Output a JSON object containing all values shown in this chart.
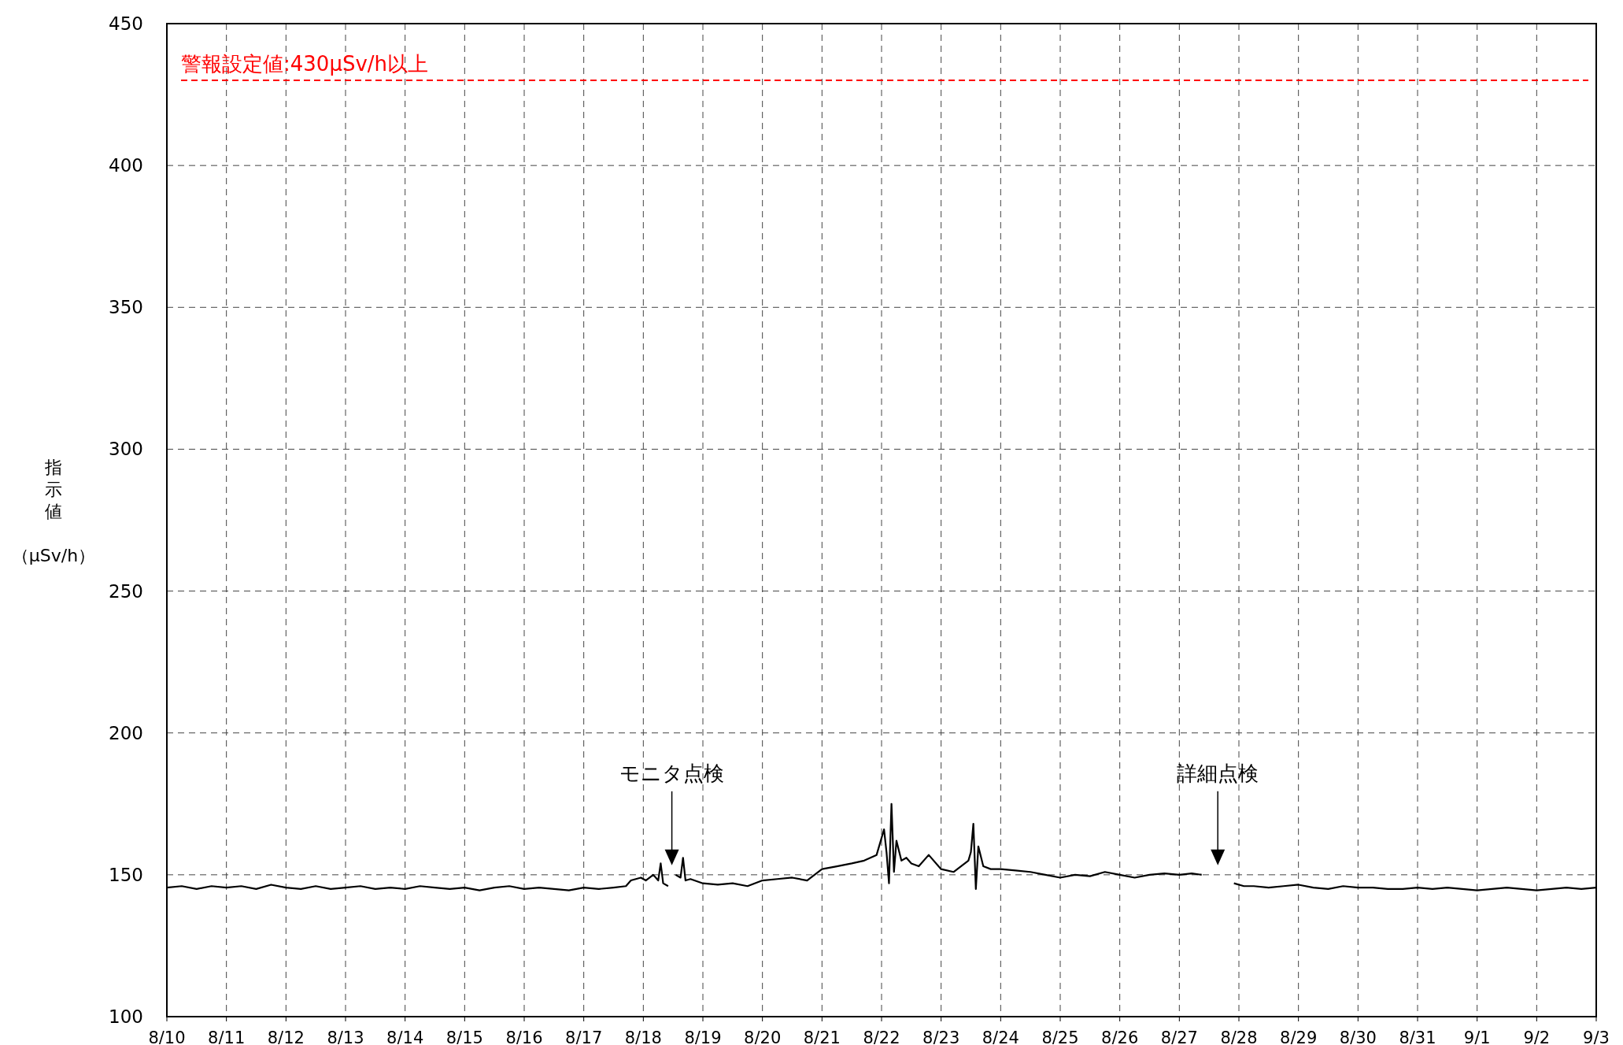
{
  "chart_data": {
    "type": "line",
    "ylabel": "指示値（μSv/h）",
    "xlim": [
      "--08-10",
      "--09-03"
    ],
    "xticks": [
      {
        "value": "--08-10",
        "label": "8/10"
      },
      {
        "value": "--08-11",
        "label": "8/11"
      },
      {
        "value": "--08-12",
        "label": "8/12"
      },
      {
        "value": "--08-13",
        "label": "8/13"
      },
      {
        "value": "--08-14",
        "label": "8/14"
      },
      {
        "value": "--08-15",
        "label": "8/15"
      },
      {
        "value": "--08-16",
        "label": "8/16"
      },
      {
        "value": "--08-17",
        "label": "8/17"
      },
      {
        "value": "--08-18",
        "label": "8/18"
      },
      {
        "value": "--08-19",
        "label": "8/19"
      },
      {
        "value": "--08-20",
        "label": "8/20"
      },
      {
        "value": "--08-21",
        "label": "8/21"
      },
      {
        "value": "--08-22",
        "label": "8/22"
      },
      {
        "value": "--08-23",
        "label": "8/23"
      },
      {
        "value": "--08-24",
        "label": "8/24"
      },
      {
        "value": "--08-25",
        "label": "8/25"
      },
      {
        "value": "--08-26",
        "label": "8/26"
      },
      {
        "value": "--08-27",
        "label": "8/27"
      },
      {
        "value": "--08-28",
        "label": "8/28"
      },
      {
        "value": "--08-29",
        "label": "8/29"
      },
      {
        "value": "--08-30",
        "label": "8/30"
      },
      {
        "value": "--08-31",
        "label": "8/31"
      },
      {
        "value": "--09-01",
        "label": "9/1"
      },
      {
        "value": "--09-02",
        "label": "9/2"
      },
      {
        "value": "--09-03",
        "label": "9/3"
      }
    ],
    "ylim": [
      100,
      450
    ],
    "yticks": [
      100,
      150,
      200,
      250,
      300,
      350,
      400,
      450
    ],
    "grid": true,
    "line_style": "solid",
    "series": [
      {
        "color": "#000000",
        "x": [
          "--08-10T00:00",
          "--08-10T06:00",
          "--08-10T12:00",
          "--08-10T18:00",
          "--08-11T00:00",
          "--08-11T06:00",
          "--08-11T12:00",
          "--08-11T18:00",
          "--08-12T00:00",
          "--08-12T06:00",
          "--08-12T12:00",
          "--08-12T18:00",
          "--08-13T00:00",
          "--08-13T06:00",
          "--08-13T12:00",
          "--08-13T18:00",
          "--08-14T00:00",
          "--08-14T06:00",
          "--08-14T12:00",
          "--08-14T18:00",
          "--08-15T00:00",
          "--08-15T06:00",
          "--08-15T12:00",
          "--08-15T18:00",
          "--08-16T00:00",
          "--08-16T06:00",
          "--08-16T12:00",
          "--08-16T18:00",
          "--08-17T00:00",
          "--08-17T06:00",
          "--08-17T12:00",
          "--08-17T17:00",
          "--08-17T19:00",
          "--08-17T23:00",
          "--08-18T01:00",
          "--08-18T04:00",
          "--08-18T06:00",
          "--08-18T07:00",
          "--08-18T08:00",
          "--08-18T10:00",
          "--08-18T11:00",
          "--08-18T13:00",
          "--08-18T15:00",
          "--08-18T16:00",
          "--08-18T17:00",
          "--08-18T19:00",
          "--08-19T00:00",
          "--08-19T06:00",
          "--08-19T12:00",
          "--08-19T18:00",
          "--08-20T00:00",
          "--08-20T06:00",
          "--08-20T12:00",
          "--08-20T18:00",
          "--08-21T00:00",
          "--08-21T06:00",
          "--08-21T12:00",
          "--08-21T17:00",
          "--08-21T22:00",
          "--08-22T01:00",
          "--08-22T02:00",
          "--08-22T03:00",
          "--08-22T04:00",
          "--08-22T05:00",
          "--08-22T06:00",
          "--08-22T08:00",
          "--08-22T10:00",
          "--08-22T12:00",
          "--08-22T15:00",
          "--08-22T19:00",
          "--08-23T00:00",
          "--08-23T05:00",
          "--08-23T08:00",
          "--08-23T11:00",
          "--08-23T12:00",
          "--08-23T13:00",
          "--08-23T14:00",
          "--08-23T15:00",
          "--08-23T17:00",
          "--08-23T20:00",
          "--08-24T00:00",
          "--08-24T06:00",
          "--08-24T12:00",
          "--08-24T18:00",
          "--08-25T00:00",
          "--08-25T06:00",
          "--08-25T12:00",
          "--08-25T18:00",
          "--08-26T00:00",
          "--08-26T06:00",
          "--08-26T12:00",
          "--08-26T18:00",
          "--08-27T00:00",
          "--08-27T05:00",
          "--08-27T09:00",
          "--08-27T12:00",
          "--08-27T22:00",
          "--08-28T02:00",
          "--08-28T06:00",
          "--08-28T12:00",
          "--08-28T18:00",
          "--08-29T00:00",
          "--08-29T06:00",
          "--08-29T12:00",
          "--08-29T18:00",
          "--08-30T00:00",
          "--08-30T06:00",
          "--08-30T12:00",
          "--08-30T18:00",
          "--08-31T00:00",
          "--08-31T06:00",
          "--08-31T12:00",
          "--08-31T18:00",
          "--09-01T00:00",
          "--09-01T06:00",
          "--09-01T12:00",
          "--09-01T18:00",
          "--09-02T00:00",
          "--09-02T06:00",
          "--09-02T12:00",
          "--09-02T18:00",
          "--09-03T00:00"
        ],
        "values": [
          145.5,
          146,
          145,
          146,
          145.5,
          146,
          145,
          146.5,
          145.5,
          145,
          146,
          145,
          145.5,
          146,
          145,
          145.5,
          145,
          146,
          145.5,
          145,
          145.5,
          144.5,
          145.5,
          146,
          145,
          145.5,
          145,
          144.5,
          145.5,
          145,
          145.5,
          146,
          148,
          149,
          148,
          150,
          148,
          154,
          147,
          146,
          null,
          150,
          149,
          156,
          148,
          148.5,
          147,
          146.5,
          147,
          146,
          148,
          148.5,
          149,
          148,
          152,
          153,
          154,
          155,
          157,
          166,
          158,
          147,
          175,
          151,
          162,
          155,
          156,
          154,
          153,
          157,
          152,
          151,
          153,
          155,
          158,
          168,
          145,
          160,
          153,
          152,
          152,
          151.5,
          151,
          150,
          149,
          150,
          149.5,
          151,
          150,
          149,
          150,
          150.5,
          150,
          150.5,
          150,
          null,
          147,
          146,
          146,
          145.5,
          146,
          146.5,
          145.5,
          145,
          146,
          145.5,
          145.5,
          145,
          145,
          145.5,
          145,
          145.5,
          145,
          144.5,
          145,
          145.5,
          145,
          144.5,
          145,
          145.5,
          145,
          145.5
        ]
      }
    ],
    "ref_lines": [
      {
        "axis": "y",
        "value": 430,
        "label": "警報設定値:430μSv/h以上",
        "color": "#ff0000",
        "line_style": "dashed"
      }
    ],
    "annotations": [
      "モニタ点検",
      "詳細点検"
    ]
  }
}
